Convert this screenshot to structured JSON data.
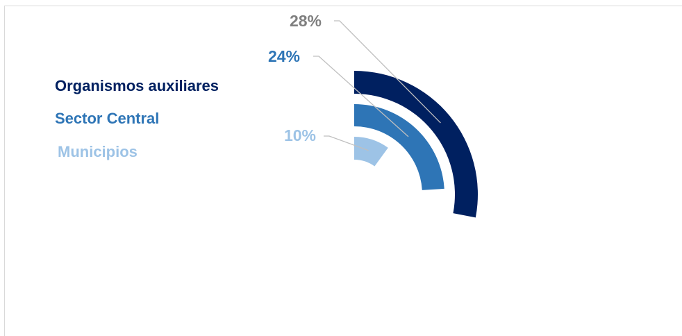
{
  "chart_data": {
    "type": "radial-bar",
    "series": [
      {
        "name": "Organismos auxiliares",
        "value": 28,
        "label": "28%",
        "color": "#002060",
        "label_color": "#7f7f7f"
      },
      {
        "name": "Sector Central",
        "value": 24,
        "label": "24%",
        "color": "#2e75b6",
        "label_color": "#2e75b6"
      },
      {
        "name": "Municipios",
        "value": 10,
        "label": "10%",
        "color": "#9dc3e6",
        "label_color": "#9dc3e6"
      }
    ],
    "full_scale": 100,
    "legend_placement": "left"
  }
}
